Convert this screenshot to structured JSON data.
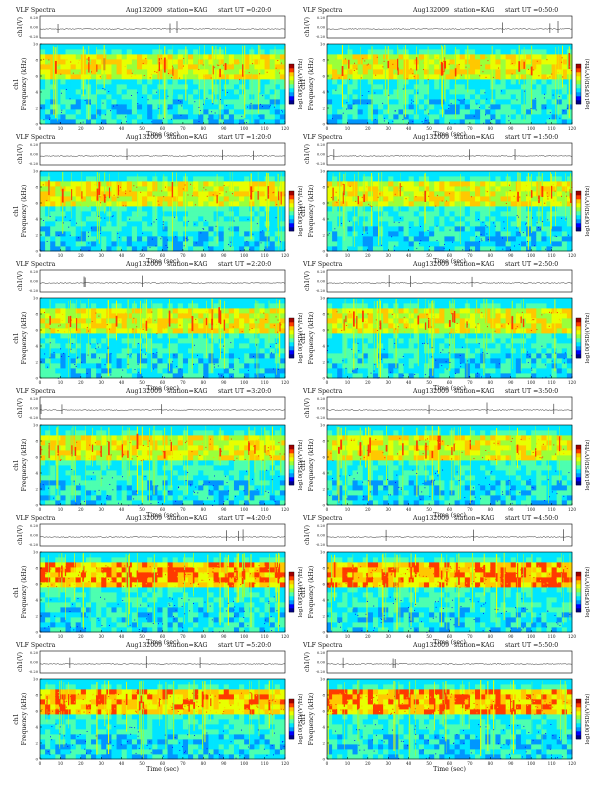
{
  "colors": {
    "scale": [
      "#00008b",
      "#0000ff",
      "#0096ff",
      "#00e5ff",
      "#4dffb0",
      "#9aff3a",
      "#e8ff00",
      "#ffc800",
      "#ff3a00",
      "#a00000"
    ],
    "background": "#ffffff"
  },
  "header": {
    "title": "VLF Spectra",
    "date": "Aug132009",
    "station": "station=KAG",
    "start_prefix": "start  UT ="
  },
  "labels": {
    "ch_axis": "ch1(V)",
    "freq_axis": "Frequency (kHz)",
    "channel": "ch1",
    "time_axis": "Time (sec)",
    "colorbar": "log10(PSD)(V²/Hz)"
  },
  "ticks": {
    "ch_ticks": [
      "0.20",
      "0.00",
      "-0.20"
    ],
    "freq_ticks": [
      "0",
      "2",
      "4",
      "6",
      "8",
      "10"
    ],
    "time_ticks": [
      "0",
      "10",
      "20",
      "30",
      "40",
      "50",
      "60",
      "70",
      "80",
      "90",
      "100",
      "110",
      "120"
    ]
  },
  "chart_data": [
    {
      "type": "heatmap",
      "title": "VLF Spectra  Aug132009  station=KAG  start UT =0:20:0",
      "start_ut": "0:20:0",
      "xlabel": "Time (sec)",
      "ylabel": "Frequency (kHz)",
      "xlim": [
        0,
        120
      ],
      "ylim": [
        0,
        10
      ],
      "colorbar_label": "log10(PSD)(V²/Hz)",
      "top_panel": {
        "label": "ch1(V)",
        "ylim": [
          -0.2,
          0.2
        ]
      }
    },
    {
      "type": "heatmap",
      "title": "VLF Spectra  Aug132009  station=KAG  start UT =0:50:0",
      "start_ut": "0:50:0",
      "xlabel": "Time (sec)",
      "ylabel": "Frequency (kHz)",
      "xlim": [
        0,
        120
      ],
      "ylim": [
        0,
        10
      ],
      "colorbar_label": "log10(PSD)(V²/Hz)",
      "top_panel": {
        "label": "ch1(V)",
        "ylim": [
          -0.2,
          0.2
        ]
      }
    },
    {
      "type": "heatmap",
      "title": "VLF Spectra  Aug132009  station=KAG  start UT =1:20:0",
      "start_ut": "1:20:0",
      "xlabel": "Time (sec)",
      "ylabel": "Frequency (kHz)",
      "xlim": [
        0,
        120
      ],
      "ylim": [
        0,
        10
      ],
      "colorbar_label": "log10(PSD)(V²/Hz)",
      "top_panel": {
        "label": "ch1(V)",
        "ylim": [
          -0.2,
          0.2
        ]
      }
    },
    {
      "type": "heatmap",
      "title": "VLF Spectra  Aug132009  station=KAG  start UT =1:50:0",
      "start_ut": "1:50:0",
      "xlabel": "Time (sec)",
      "ylabel": "Frequency (kHz)",
      "xlim": [
        0,
        120
      ],
      "ylim": [
        0,
        10
      ],
      "colorbar_label": "log10(PSD)(V²/Hz)",
      "top_panel": {
        "label": "ch1(V)",
        "ylim": [
          -0.2,
          0.2
        ]
      }
    },
    {
      "type": "heatmap",
      "title": "VLF Spectra  Aug132009  station=KAG  start UT =2:20:0",
      "start_ut": "2:20:0",
      "xlabel": "Time (sec)",
      "ylabel": "Frequency (kHz)",
      "xlim": [
        0,
        120
      ],
      "ylim": [
        0,
        10
      ],
      "colorbar_label": "log10(PSD)(V²/Hz)",
      "top_panel": {
        "label": "ch1(V)",
        "ylim": [
          -0.2,
          0.2
        ]
      }
    },
    {
      "type": "heatmap",
      "title": "VLF Spectra  Aug132009  station=KAG  start UT =2:50:0",
      "start_ut": "2:50:0",
      "xlabel": "Time (sec)",
      "ylabel": "Frequency (kHz)",
      "xlim": [
        0,
        120
      ],
      "ylim": [
        0,
        10
      ],
      "colorbar_label": "log10(PSD)(V²/Hz)",
      "top_panel": {
        "label": "ch1(V)",
        "ylim": [
          -0.2,
          0.2
        ]
      }
    },
    {
      "type": "heatmap",
      "title": "VLF Spectra  Aug132009  station=KAG  start UT =3:20:0",
      "start_ut": "3:20:0",
      "xlabel": "Time (sec)",
      "ylabel": "Frequency (kHz)",
      "xlim": [
        0,
        120
      ],
      "ylim": [
        0,
        10
      ],
      "colorbar_label": "log10(PSD)(V²/Hz)",
      "top_panel": {
        "label": "ch1(V)",
        "ylim": [
          -0.2,
          0.2
        ]
      }
    },
    {
      "type": "heatmap",
      "title": "VLF Spectra  Aug132009  station=KAG  start UT =3:50:0",
      "start_ut": "3:50:0",
      "xlabel": "Time (sec)",
      "ylabel": "Frequency (kHz)",
      "xlim": [
        0,
        120
      ],
      "ylim": [
        0,
        10
      ],
      "colorbar_label": "log10(PSD)(V²/Hz)",
      "top_panel": {
        "label": "ch1(V)",
        "ylim": [
          -0.2,
          0.2
        ]
      }
    },
    {
      "type": "heatmap",
      "title": "VLF Spectra  Aug132009  station=KAG  start UT =4:20:0",
      "start_ut": "4:20:0",
      "xlabel": "Time (sec)",
      "ylabel": "Frequency (kHz)",
      "xlim": [
        0,
        120
      ],
      "ylim": [
        0,
        10
      ],
      "colorbar_label": "log10(PSD)(V²/Hz)",
      "top_panel": {
        "label": "ch1(V)",
        "ylim": [
          -0.2,
          0.2
        ]
      }
    },
    {
      "type": "heatmap",
      "title": "VLF Spectra  Aug132009  station=KAG  start UT =4:50:0",
      "start_ut": "4:50:0",
      "xlabel": "Time (sec)",
      "ylabel": "Frequency (kHz)",
      "xlim": [
        0,
        120
      ],
      "ylim": [
        0,
        10
      ],
      "colorbar_label": "log10(PSD)(V²/Hz)",
      "top_panel": {
        "label": "ch1(V)",
        "ylim": [
          -0.2,
          0.2
        ]
      }
    },
    {
      "type": "heatmap",
      "title": "VLF Spectra  Aug132009  station=KAG  start UT =5:20:0",
      "start_ut": "5:20:0",
      "xlabel": "Time (sec)",
      "ylabel": "Frequency (kHz)",
      "xlim": [
        0,
        120
      ],
      "ylim": [
        0,
        10
      ],
      "colorbar_label": "log10(PSD)(V²/Hz)",
      "top_panel": {
        "label": "ch1(V)",
        "ylim": [
          -0.2,
          0.2
        ]
      }
    },
    {
      "type": "heatmap",
      "title": "VLF Spectra  Aug132009  station=KAG  start UT =5:50:0",
      "start_ut": "5:50:0",
      "xlabel": "Time (sec)",
      "ylabel": "Frequency (kHz)",
      "xlim": [
        0,
        120
      ],
      "ylim": [
        0,
        10
      ],
      "colorbar_label": "log10(PSD)(V²/Hz)",
      "top_panel": {
        "label": "ch1(V)",
        "ylim": [
          -0.2,
          0.2
        ]
      }
    }
  ]
}
